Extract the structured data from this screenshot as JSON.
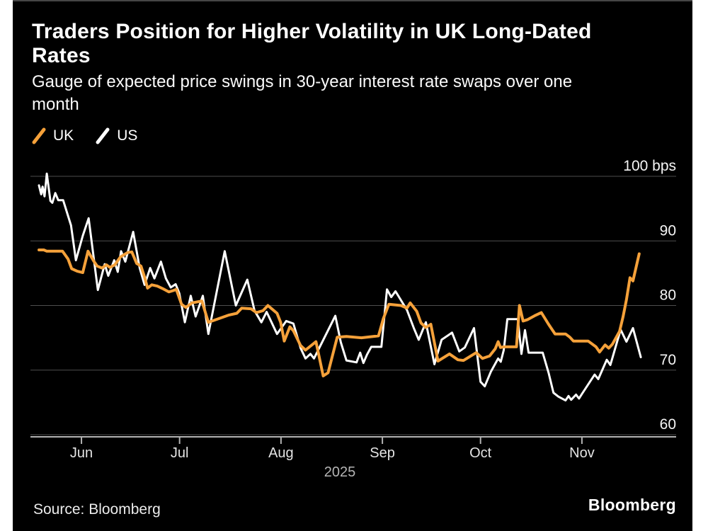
{
  "header": {
    "title_line1": "Traders Position for Higher Volatility in UK Long-Dated",
    "title_line2": "Rates",
    "subtitle_line1": "Gauge of expected price swings in 30-year interest rate swaps over one",
    "subtitle_line2": "month"
  },
  "legend": [
    {
      "label": "UK",
      "color": "#F5A13A"
    },
    {
      "label": "US",
      "color": "#FFFFFF"
    }
  ],
  "footer": {
    "source": "Source: Bloomberg",
    "logo": "Bloomberg"
  },
  "chart_data": {
    "type": "line",
    "unit": "bps",
    "title": "Traders Position for Higher Volatility in UK Long-Dated Rates",
    "subtitle": "Gauge of expected price swings in 30-year interest rate swaps over one month",
    "x_axis": {
      "start_date": "2025-05-19",
      "day_min": 0,
      "day_max": 184,
      "tick_labels": [
        "Jun",
        "Jul",
        "Aug",
        "Sep",
        "Oct",
        "Nov"
      ],
      "tick_days": [
        13,
        43,
        74,
        105,
        135,
        166
      ],
      "year_label": "2025"
    },
    "y_axis": {
      "ticks": [
        60,
        70,
        80,
        90,
        100
      ],
      "top_tick_label": "100 bps",
      "range": [
        59.5,
        101
      ],
      "grid": true
    },
    "colors": {
      "grid": "#4e4e4e",
      "axis": "#b3b3b3",
      "tick_label": "#f5f5f5",
      "month_label": "#e4e4e4",
      "year_label": "#b5b5b5"
    },
    "legend_position": "top-left",
    "series": [
      {
        "name": "US",
        "color": "#FFFFFF",
        "width": 3,
        "points": [
          [
            0,
            98.6
          ],
          [
            0.7,
            97.2
          ],
          [
            1.1,
            98.4
          ],
          [
            1.7,
            96.9
          ],
          [
            2.4,
            100.4
          ],
          [
            3.5,
            96.2
          ],
          [
            4.1,
            95.9
          ],
          [
            5,
            97.4
          ],
          [
            5.9,
            96.3
          ],
          [
            7.4,
            96.3
          ],
          [
            9.8,
            92.4
          ],
          [
            11.3,
            87
          ],
          [
            13.4,
            90.8
          ],
          [
            15.2,
            93.5
          ],
          [
            18,
            82.4
          ],
          [
            20.1,
            86.4
          ],
          [
            21.2,
            84.6
          ],
          [
            23,
            87
          ],
          [
            24.1,
            85.2
          ],
          [
            25.1,
            88.4
          ],
          [
            26.4,
            86.8
          ],
          [
            28.8,
            91.4
          ],
          [
            30.8,
            85.8
          ],
          [
            32.3,
            83.2
          ],
          [
            34,
            85.8
          ],
          [
            35.3,
            84.2
          ],
          [
            37.3,
            86.8
          ],
          [
            38.8,
            84.2
          ],
          [
            40.3,
            82.8
          ],
          [
            41.8,
            83.3
          ],
          [
            42.9,
            81.9
          ],
          [
            44.6,
            77.4
          ],
          [
            46.4,
            81.5
          ],
          [
            47.9,
            78.3
          ],
          [
            50.1,
            81.5
          ],
          [
            51.8,
            75.6
          ],
          [
            56.8,
            88.4
          ],
          [
            60.2,
            80
          ],
          [
            63.7,
            84
          ],
          [
            65.9,
            79.2
          ],
          [
            68,
            77.4
          ],
          [
            69.6,
            79
          ],
          [
            72.8,
            75.6
          ],
          [
            75.6,
            77.6
          ],
          [
            77.8,
            77.2
          ],
          [
            80,
            73.4
          ],
          [
            81.5,
            71.8
          ],
          [
            83,
            72.5
          ],
          [
            84.1,
            71.8
          ],
          [
            90.6,
            78.4
          ],
          [
            92.3,
            74.3
          ],
          [
            94,
            71.5
          ],
          [
            97.1,
            71.2
          ],
          [
            98.2,
            72.7
          ],
          [
            99.2,
            71.1
          ],
          [
            100.3,
            72.4
          ],
          [
            101.6,
            73.6
          ],
          [
            104.7,
            73.6
          ],
          [
            106.4,
            82.5
          ],
          [
            107.7,
            81.3
          ],
          [
            109,
            82.2
          ],
          [
            112.5,
            79.3
          ],
          [
            114.6,
            76.5
          ],
          [
            116.1,
            74.7
          ],
          [
            118.3,
            77.4
          ],
          [
            120.9,
            70.9
          ],
          [
            123.1,
            74.7
          ],
          [
            126.3,
            75.8
          ],
          [
            128.5,
            72.9
          ],
          [
            130.2,
            73.5
          ],
          [
            133,
            76.5
          ],
          [
            135,
            68.2
          ],
          [
            136.3,
            67.5
          ],
          [
            138.2,
            69.8
          ],
          [
            140.4,
            71.8
          ],
          [
            141.2,
            71.3
          ],
          [
            142.1,
            73.1
          ],
          [
            143.2,
            77.9
          ],
          [
            146.4,
            77.9
          ],
          [
            147.5,
            72.5
          ],
          [
            148.6,
            76.2
          ],
          [
            149.7,
            72.7
          ],
          [
            154,
            72.7
          ],
          [
            155.8,
            69.6
          ],
          [
            157.3,
            66.5
          ],
          [
            158.8,
            65.9
          ],
          [
            161,
            65.3
          ],
          [
            161.9,
            66
          ],
          [
            162.7,
            65.4
          ],
          [
            164.2,
            66.2
          ],
          [
            165.1,
            65.6
          ],
          [
            166,
            66.3
          ],
          [
            169.9,
            69.3
          ],
          [
            171,
            68.6
          ],
          [
            173.6,
            71.6
          ],
          [
            174.7,
            70.8
          ],
          [
            177.5,
            75.7
          ],
          [
            177.9,
            76.2
          ],
          [
            179.6,
            74.4
          ],
          [
            181.6,
            76.5
          ],
          [
            184,
            72
          ]
        ]
      },
      {
        "name": "UK",
        "color": "#F5A13A",
        "width": 4,
        "points": [
          [
            0,
            88.6
          ],
          [
            1.5,
            88.6
          ],
          [
            2.4,
            88.4
          ],
          [
            7.2,
            88.4
          ],
          [
            8.9,
            87.2
          ],
          [
            10,
            85.7
          ],
          [
            11.7,
            85.3
          ],
          [
            13.4,
            85.1
          ],
          [
            15,
            88.4
          ],
          [
            16.7,
            86.9
          ],
          [
            17.8,
            86.1
          ],
          [
            19.3,
            85.8
          ],
          [
            20.6,
            86.3
          ],
          [
            21.7,
            85.9
          ],
          [
            23.2,
            86.3
          ],
          [
            24.9,
            87.5
          ],
          [
            27.1,
            88.2
          ],
          [
            28.4,
            88.3
          ],
          [
            29.9,
            86.5
          ],
          [
            31.2,
            86.1
          ],
          [
            32.3,
            84.4
          ],
          [
            33.2,
            82.7
          ],
          [
            34.5,
            83.2
          ],
          [
            36.2,
            83
          ],
          [
            37.9,
            82.6
          ],
          [
            39.7,
            82.1
          ],
          [
            41,
            82.3
          ],
          [
            42,
            82.5
          ],
          [
            43.6,
            80.2
          ],
          [
            44.9,
            79.7
          ],
          [
            46.8,
            80.4
          ],
          [
            49.8,
            80.7
          ],
          [
            51.8,
            77.4
          ],
          [
            54,
            77.8
          ],
          [
            57.9,
            78.5
          ],
          [
            60.5,
            78.8
          ],
          [
            62,
            79.6
          ],
          [
            64.8,
            79.5
          ],
          [
            66.5,
            78.9
          ],
          [
            68.5,
            79.2
          ],
          [
            70,
            80
          ],
          [
            72.8,
            78.8
          ],
          [
            73.9,
            77.4
          ],
          [
            75,
            74.5
          ],
          [
            76.7,
            76.7
          ],
          [
            77.8,
            76.1
          ],
          [
            80,
            73.8
          ],
          [
            81.5,
            73.1
          ],
          [
            84.7,
            74.4
          ],
          [
            86.9,
            69.1
          ],
          [
            88.4,
            69.6
          ],
          [
            91.2,
            75.1
          ],
          [
            94,
            75.2
          ],
          [
            98.6,
            75
          ],
          [
            103.8,
            75.3
          ],
          [
            105.3,
            78
          ],
          [
            107,
            80.2
          ],
          [
            110.7,
            80
          ],
          [
            112.5,
            79.6
          ],
          [
            113.5,
            80.4
          ],
          [
            115.5,
            79.1
          ],
          [
            116.8,
            77.3
          ],
          [
            118.3,
            76.6
          ],
          [
            119.8,
            77.1
          ],
          [
            122,
            71.4
          ],
          [
            125.5,
            72.5
          ],
          [
            128.1,
            71.6
          ],
          [
            129.8,
            71.5
          ],
          [
            133.7,
            72.7
          ],
          [
            135.6,
            71.8
          ],
          [
            137.8,
            72.2
          ],
          [
            139.5,
            73.3
          ],
          [
            140.4,
            74.4
          ],
          [
            141.1,
            73.5
          ],
          [
            142.1,
            73.6
          ],
          [
            146,
            73.6
          ],
          [
            146.9,
            80
          ],
          [
            148,
            77.6
          ],
          [
            149.3,
            77.8
          ],
          [
            151.5,
            78.4
          ],
          [
            153.6,
            78.9
          ],
          [
            155.8,
            77.1
          ],
          [
            157.8,
            75.6
          ],
          [
            161,
            75.6
          ],
          [
            162.3,
            75.1
          ],
          [
            163.4,
            74.5
          ],
          [
            167.9,
            74.5
          ],
          [
            170.3,
            73.6
          ],
          [
            171.4,
            72.8
          ],
          [
            173.1,
            73.9
          ],
          [
            174.2,
            73.4
          ],
          [
            175.3,
            74
          ],
          [
            177.5,
            76
          ],
          [
            178.6,
            78.3
          ],
          [
            179.6,
            80.9
          ],
          [
            180.7,
            84.3
          ],
          [
            181.6,
            83.8
          ],
          [
            183.5,
            88
          ]
        ]
      }
    ]
  }
}
